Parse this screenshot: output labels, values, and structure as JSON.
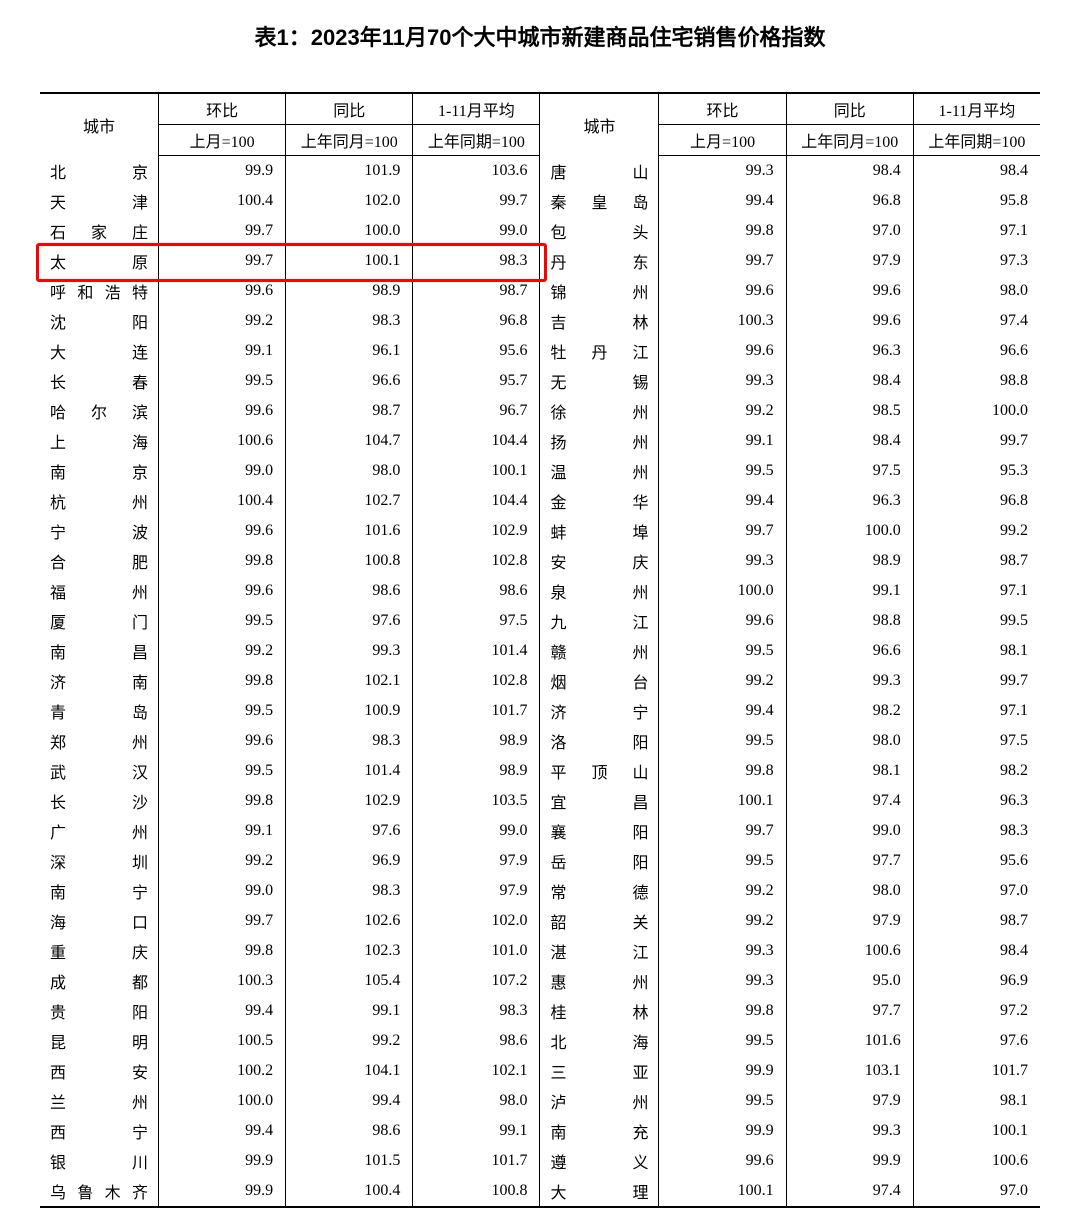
{
  "title": "表1：2023年11月70个大中城市新建商品住宅销售价格指数",
  "headers": {
    "city": "城市",
    "mom": "环比",
    "yoy": "同比",
    "avg": "1-11月平均",
    "mom_sub": "上月=100",
    "yoy_sub": "上年同月=100",
    "avg_sub": "上年同期=100"
  },
  "highlight": {
    "row_index": 3,
    "color": "#ff0000"
  },
  "left": [
    {
      "city": "北　　京",
      "mom": "99.9",
      "yoy": "101.9",
      "avg": "103.6"
    },
    {
      "city": "天　　津",
      "mom": "100.4",
      "yoy": "102.0",
      "avg": "99.7"
    },
    {
      "city": "石 家 庄",
      "mom": "99.7",
      "yoy": "100.0",
      "avg": "99.0"
    },
    {
      "city": "太　　原",
      "mom": "99.7",
      "yoy": "100.1",
      "avg": "98.3"
    },
    {
      "city": "呼和浩特",
      "mom": "99.6",
      "yoy": "98.9",
      "avg": "98.7"
    },
    {
      "city": "沈　　阳",
      "mom": "99.2",
      "yoy": "98.3",
      "avg": "96.8"
    },
    {
      "city": "大　　连",
      "mom": "99.1",
      "yoy": "96.1",
      "avg": "95.6"
    },
    {
      "city": "长　　春",
      "mom": "99.5",
      "yoy": "96.6",
      "avg": "95.7"
    },
    {
      "city": "哈 尔 滨",
      "mom": "99.6",
      "yoy": "98.7",
      "avg": "96.7"
    },
    {
      "city": "上　　海",
      "mom": "100.6",
      "yoy": "104.7",
      "avg": "104.4"
    },
    {
      "city": "南　　京",
      "mom": "99.0",
      "yoy": "98.0",
      "avg": "100.1"
    },
    {
      "city": "杭　　州",
      "mom": "100.4",
      "yoy": "102.7",
      "avg": "104.4"
    },
    {
      "city": "宁　　波",
      "mom": "99.6",
      "yoy": "101.6",
      "avg": "102.9"
    },
    {
      "city": "合　　肥",
      "mom": "99.8",
      "yoy": "100.8",
      "avg": "102.8"
    },
    {
      "city": "福　　州",
      "mom": "99.6",
      "yoy": "98.6",
      "avg": "98.6"
    },
    {
      "city": "厦　　门",
      "mom": "99.5",
      "yoy": "97.6",
      "avg": "97.5"
    },
    {
      "city": "南　　昌",
      "mom": "99.2",
      "yoy": "99.3",
      "avg": "101.4"
    },
    {
      "city": "济　　南",
      "mom": "99.8",
      "yoy": "102.1",
      "avg": "102.8"
    },
    {
      "city": "青　　岛",
      "mom": "99.5",
      "yoy": "100.9",
      "avg": "101.7"
    },
    {
      "city": "郑　　州",
      "mom": "99.6",
      "yoy": "98.3",
      "avg": "98.9"
    },
    {
      "city": "武　　汉",
      "mom": "99.5",
      "yoy": "101.4",
      "avg": "98.9"
    },
    {
      "city": "长　　沙",
      "mom": "99.8",
      "yoy": "102.9",
      "avg": "103.5"
    },
    {
      "city": "广　　州",
      "mom": "99.1",
      "yoy": "97.6",
      "avg": "99.0"
    },
    {
      "city": "深　　圳",
      "mom": "99.2",
      "yoy": "96.9",
      "avg": "97.9"
    },
    {
      "city": "南　　宁",
      "mom": "99.0",
      "yoy": "98.3",
      "avg": "97.9"
    },
    {
      "city": "海　　口",
      "mom": "99.7",
      "yoy": "102.6",
      "avg": "102.0"
    },
    {
      "city": "重　　庆",
      "mom": "99.8",
      "yoy": "102.3",
      "avg": "101.0"
    },
    {
      "city": "成　　都",
      "mom": "100.3",
      "yoy": "105.4",
      "avg": "107.2"
    },
    {
      "city": "贵　　阳",
      "mom": "99.4",
      "yoy": "99.1",
      "avg": "98.3"
    },
    {
      "city": "昆　　明",
      "mom": "100.5",
      "yoy": "99.2",
      "avg": "98.6"
    },
    {
      "city": "西　　安",
      "mom": "100.2",
      "yoy": "104.1",
      "avg": "102.1"
    },
    {
      "city": "兰　　州",
      "mom": "100.0",
      "yoy": "99.4",
      "avg": "98.0"
    },
    {
      "city": "西　　宁",
      "mom": "99.4",
      "yoy": "98.6",
      "avg": "99.1"
    },
    {
      "city": "银　　川",
      "mom": "99.9",
      "yoy": "101.5",
      "avg": "101.7"
    },
    {
      "city": "乌鲁木齐",
      "mom": "99.9",
      "yoy": "100.4",
      "avg": "100.8"
    }
  ],
  "right": [
    {
      "city": "唐　　山",
      "mom": "99.3",
      "yoy": "98.4",
      "avg": "98.4"
    },
    {
      "city": "秦 皇 岛",
      "mom": "99.4",
      "yoy": "96.8",
      "avg": "95.8"
    },
    {
      "city": "包　　头",
      "mom": "99.8",
      "yoy": "97.0",
      "avg": "97.1"
    },
    {
      "city": "丹　　东",
      "mom": "99.7",
      "yoy": "97.9",
      "avg": "97.3"
    },
    {
      "city": "锦　　州",
      "mom": "99.6",
      "yoy": "99.6",
      "avg": "98.0"
    },
    {
      "city": "吉　　林",
      "mom": "100.3",
      "yoy": "99.6",
      "avg": "97.4"
    },
    {
      "city": "牡 丹 江",
      "mom": "99.6",
      "yoy": "96.3",
      "avg": "96.6"
    },
    {
      "city": "无　　锡",
      "mom": "99.3",
      "yoy": "98.4",
      "avg": "98.8"
    },
    {
      "city": "徐　　州",
      "mom": "99.2",
      "yoy": "98.5",
      "avg": "100.0"
    },
    {
      "city": "扬　　州",
      "mom": "99.1",
      "yoy": "98.4",
      "avg": "99.7"
    },
    {
      "city": "温　　州",
      "mom": "99.5",
      "yoy": "97.5",
      "avg": "95.3"
    },
    {
      "city": "金　　华",
      "mom": "99.4",
      "yoy": "96.3",
      "avg": "96.8"
    },
    {
      "city": "蚌　　埠",
      "mom": "99.7",
      "yoy": "100.0",
      "avg": "99.2"
    },
    {
      "city": "安　　庆",
      "mom": "99.3",
      "yoy": "98.9",
      "avg": "98.7"
    },
    {
      "city": "泉　　州",
      "mom": "100.0",
      "yoy": "99.1",
      "avg": "97.1"
    },
    {
      "city": "九　　江",
      "mom": "99.6",
      "yoy": "98.8",
      "avg": "99.5"
    },
    {
      "city": "赣　　州",
      "mom": "99.5",
      "yoy": "96.6",
      "avg": "98.1"
    },
    {
      "city": "烟　　台",
      "mom": "99.2",
      "yoy": "99.3",
      "avg": "99.7"
    },
    {
      "city": "济　　宁",
      "mom": "99.4",
      "yoy": "98.2",
      "avg": "97.1"
    },
    {
      "city": "洛　　阳",
      "mom": "99.5",
      "yoy": "98.0",
      "avg": "97.5"
    },
    {
      "city": "平 顶 山",
      "mom": "99.8",
      "yoy": "98.1",
      "avg": "98.2"
    },
    {
      "city": "宜　　昌",
      "mom": "100.1",
      "yoy": "97.4",
      "avg": "96.3"
    },
    {
      "city": "襄　　阳",
      "mom": "99.7",
      "yoy": "99.0",
      "avg": "98.3"
    },
    {
      "city": "岳　　阳",
      "mom": "99.5",
      "yoy": "97.7",
      "avg": "95.6"
    },
    {
      "city": "常　　德",
      "mom": "99.2",
      "yoy": "98.0",
      "avg": "97.0"
    },
    {
      "city": "韶　　关",
      "mom": "99.2",
      "yoy": "97.9",
      "avg": "98.7"
    },
    {
      "city": "湛　　江",
      "mom": "99.3",
      "yoy": "100.6",
      "avg": "98.4"
    },
    {
      "city": "惠　　州",
      "mom": "99.3",
      "yoy": "95.0",
      "avg": "96.9"
    },
    {
      "city": "桂　　林",
      "mom": "99.8",
      "yoy": "97.7",
      "avg": "97.2"
    },
    {
      "city": "北　　海",
      "mom": "99.5",
      "yoy": "101.6",
      "avg": "97.6"
    },
    {
      "city": "三　　亚",
      "mom": "99.9",
      "yoy": "103.1",
      "avg": "101.7"
    },
    {
      "city": "泸　　州",
      "mom": "99.5",
      "yoy": "97.9",
      "avg": "98.1"
    },
    {
      "city": "南　　充",
      "mom": "99.9",
      "yoy": "99.3",
      "avg": "100.1"
    },
    {
      "city": "遵　　义",
      "mom": "99.6",
      "yoy": "99.9",
      "avg": "100.6"
    },
    {
      "city": "大　　理",
      "mom": "100.1",
      "yoy": "97.4",
      "avg": "97.0"
    }
  ]
}
